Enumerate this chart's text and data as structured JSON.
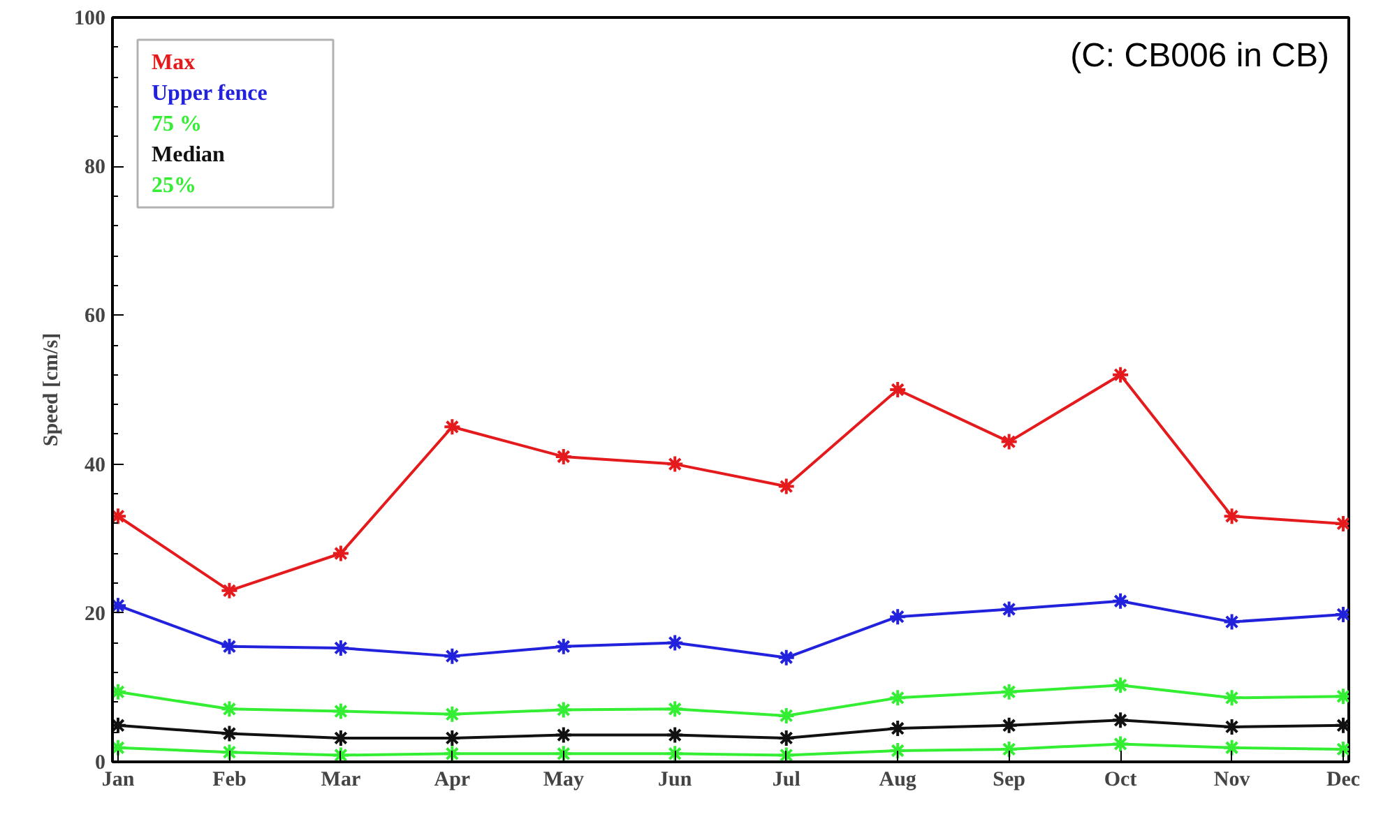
{
  "chart_data": {
    "type": "line",
    "ylabel": "Speed [cm/s]",
    "categories": [
      "Jan",
      "Feb",
      "Mar",
      "Apr",
      "May",
      "Jun",
      "Jul",
      "Aug",
      "Sep",
      "Oct",
      "Nov",
      "Dec"
    ],
    "series": [
      {
        "name": "Max",
        "color": "#e41a1c",
        "values": [
          33,
          23,
          28,
          45,
          41,
          40,
          37,
          50,
          43,
          52,
          33,
          32
        ]
      },
      {
        "name": "Upper fence",
        "color": "#2222dd",
        "values": [
          21,
          15.5,
          15.3,
          14.2,
          15.5,
          16,
          14,
          19.5,
          20.5,
          21.6,
          18.8,
          19.8
        ]
      },
      {
        "name": "75 %",
        "color": "#33ee33",
        "values": [
          9.4,
          7.1,
          6.8,
          6.4,
          7,
          7.1,
          6.2,
          8.6,
          9.4,
          10.3,
          8.6,
          8.8
        ]
      },
      {
        "name": "Median",
        "color": "#111111",
        "values": [
          4.9,
          3.8,
          3.2,
          3.2,
          3.6,
          3.6,
          3.2,
          4.5,
          4.9,
          5.6,
          4.7,
          4.9
        ]
      },
      {
        "name": "25%",
        "color": "#33ee33",
        "values": [
          1.9,
          1.3,
          0.9,
          1.1,
          1.1,
          1.1,
          0.9,
          1.5,
          1.7,
          2.4,
          1.9,
          1.7
        ]
      }
    ],
    "ylim": [
      0,
      100
    ],
    "yticks": [
      0,
      20,
      40,
      60,
      80,
      100
    ],
    "grid": false,
    "legend": "top left",
    "marker": "cross",
    "line_style": "solid",
    "annotations": [
      "(C: CB006 in CB)"
    ]
  }
}
